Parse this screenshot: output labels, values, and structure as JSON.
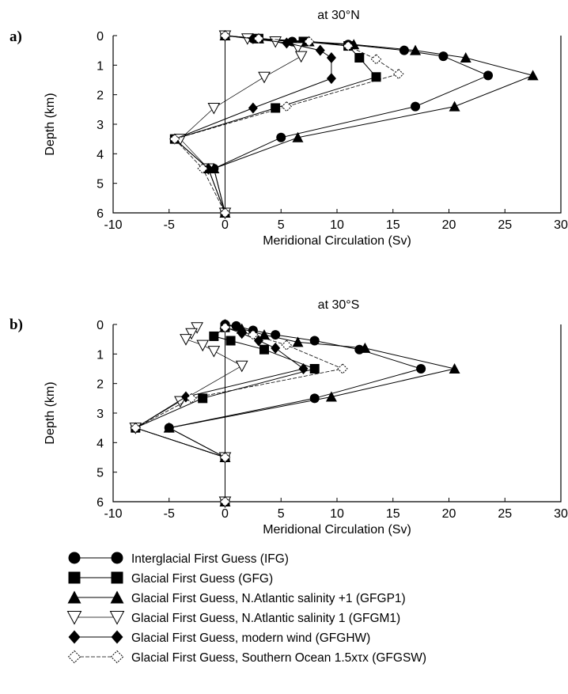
{
  "chart_data": [
    {
      "type": "line",
      "panel": "a)",
      "title": "at 30°N",
      "xlabel": "Meridional Circulation (Sv)",
      "ylabel": "Depth (km)",
      "xlim": [
        -10,
        30
      ],
      "ylim": [
        0,
        6
      ],
      "y_inverted": true,
      "xticks": [
        "-10",
        "-5",
        "0",
        "5",
        "10",
        "15",
        "20",
        "25",
        "30"
      ],
      "yticks": [
        "0",
        "1",
        "2",
        "3",
        "4",
        "5",
        "6"
      ],
      "series": [
        {
          "name": "Interglacial First Guess (IFG)",
          "marker": "circle",
          "x": [
            0,
            2.5,
            6,
            11,
            16,
            19.5,
            23.5,
            17,
            5,
            -1,
            0
          ],
          "y": [
            0,
            0.1,
            0.2,
            0.3,
            0.5,
            0.7,
            1.35,
            2.4,
            3.45,
            4.5,
            6
          ]
        },
        {
          "name": "Glacial First Guess (GFG)",
          "marker": "square",
          "x": [
            0,
            3,
            7,
            11,
            12,
            13.5,
            4.5,
            -4.5,
            -1.5,
            0
          ],
          "y": [
            0,
            0.1,
            0.2,
            0.35,
            0.75,
            1.4,
            2.45,
            3.5,
            4.5,
            6
          ]
        },
        {
          "name": "Glacial First Guess, N.Atlantic salinity +1 (GFGP1)",
          "marker": "triangle",
          "x": [
            0,
            3,
            7.5,
            11.5,
            17,
            21.5,
            27.5,
            20.5,
            6.5,
            -1,
            0
          ],
          "y": [
            0,
            0.1,
            0.2,
            0.3,
            0.5,
            0.75,
            1.35,
            2.4,
            3.45,
            4.5,
            6
          ]
        },
        {
          "name": "Glacial First Guess, N.Atlantic salinity 1 (GFGM1)",
          "marker": "triangle-down",
          "x": [
            0,
            2,
            4.5,
            6.5,
            6.8,
            3.5,
            -1,
            -4,
            -1.5,
            0
          ],
          "y": [
            0,
            0.1,
            0.2,
            0.4,
            0.7,
            1.4,
            2.45,
            3.5,
            4.5,
            6
          ]
        },
        {
          "name": "Glacial First Guess, modern wind (GFGHW)",
          "marker": "diamond",
          "x": [
            0,
            2.5,
            5.5,
            8.5,
            9.5,
            9.5,
            2.5,
            -4.5,
            -1.5,
            0
          ],
          "y": [
            0,
            0.1,
            0.25,
            0.5,
            0.75,
            1.45,
            2.45,
            3.5,
            4.5,
            6
          ]
        },
        {
          "name": "Glacial First Guess, Southern Ocean 1.5xτx (GFGSW)",
          "marker": "dash-diamond",
          "x": [
            0,
            3,
            7.5,
            11,
            13.5,
            15.5,
            5.5,
            -4.5,
            -2,
            0
          ],
          "y": [
            0,
            0.1,
            0.2,
            0.35,
            0.8,
            1.3,
            2.4,
            3.5,
            4.5,
            6
          ]
        }
      ]
    },
    {
      "type": "line",
      "panel": "b)",
      "title": "at 30°S",
      "xlabel": "Meridional Circulation (Sv)",
      "ylabel": "Depth (km)",
      "xlim": [
        -10,
        30
      ],
      "ylim": [
        0,
        6
      ],
      "y_inverted": true,
      "xticks": [
        "-10",
        "-5",
        "0",
        "5",
        "10",
        "15",
        "20",
        "25",
        "30"
      ],
      "yticks": [
        "0",
        "1",
        "2",
        "3",
        "4",
        "5",
        "6"
      ],
      "series": [
        {
          "name": "Interglacial First Guess (IFG)",
          "marker": "circle",
          "x": [
            0,
            1,
            2.5,
            4.5,
            8,
            12,
            17.5,
            8,
            -5,
            0,
            0
          ],
          "y": [
            0,
            0.05,
            0.2,
            0.35,
            0.55,
            0.85,
            1.5,
            2.5,
            3.5,
            4.5,
            6
          ]
        },
        {
          "name": "Glacial First Guess (GFG)",
          "marker": "square",
          "x": [
            0,
            -1,
            0.5,
            3.5,
            8,
            -2,
            -8,
            0,
            0
          ],
          "y": [
            0.1,
            0.4,
            0.55,
            0.85,
            1.5,
            2.5,
            3.5,
            4.5,
            6
          ]
        },
        {
          "name": "Glacial First Guess, N.Atlantic salinity +1 (GFGP1)",
          "marker": "triangle",
          "x": [
            0,
            1.5,
            3.5,
            6.5,
            12.5,
            20.5,
            9.5,
            -5,
            0,
            0
          ],
          "y": [
            0,
            0.15,
            0.35,
            0.6,
            0.8,
            1.5,
            2.45,
            3.5,
            4.5,
            6
          ]
        },
        {
          "name": "Glacial First Guess, N.Atlantic salinity 1 (GFGM1)",
          "marker": "triangle-down",
          "x": [
            -2.5,
            -3,
            -3.5,
            -2,
            -1,
            1.5,
            -4,
            -8,
            0,
            0
          ],
          "y": [
            0.1,
            0.3,
            0.5,
            0.7,
            0.9,
            1.4,
            2.6,
            3.5,
            4.5,
            6
          ]
        },
        {
          "name": "Glacial First Guess, modern wind (GFGHW)",
          "marker": "diamond",
          "x": [
            0,
            1.5,
            3,
            4.5,
            7,
            -3.5,
            -8,
            0,
            0
          ],
          "y": [
            0.1,
            0.3,
            0.55,
            0.8,
            1.5,
            2.45,
            3.5,
            4.5,
            6
          ]
        },
        {
          "name": "Glacial First Guess, Southern Ocean 1.5xτx (GFGSW)",
          "marker": "dash-diamond",
          "x": [
            0,
            2.5,
            5.5,
            10.5,
            -3,
            -8,
            0,
            0
          ],
          "y": [
            0.1,
            0.35,
            0.7,
            1.5,
            2.5,
            3.5,
            4.5,
            6
          ]
        }
      ]
    }
  ],
  "legend": [
    {
      "marker": "circle",
      "label": "Interglacial First Guess (IFG)"
    },
    {
      "marker": "square",
      "label": "Glacial First Guess (GFG)"
    },
    {
      "marker": "triangle",
      "label": "Glacial First Guess, N.Atlantic salinity +1 (GFGP1)"
    },
    {
      "marker": "triangle-down",
      "label": "Glacial First Guess, N.Atlantic salinity 1 (GFGM1)"
    },
    {
      "marker": "diamond",
      "label": "Glacial First Guess, modern wind (GFGHW)"
    },
    {
      "marker": "dash-diamond",
      "label": "Glacial First Guess, Southern Ocean 1.5xτx (GFGSW)"
    }
  ]
}
